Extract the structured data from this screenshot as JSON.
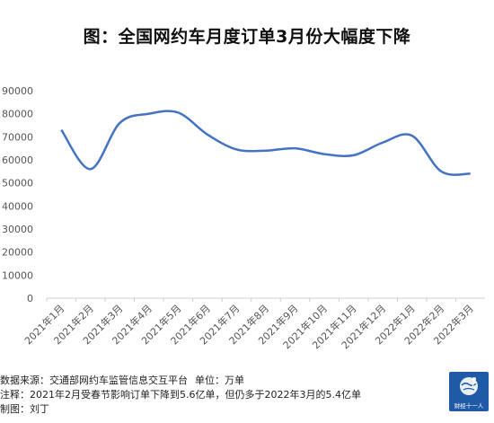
{
  "title": "图：全国网约车月度订单3月份大幅度下降",
  "footer": {
    "source_label": "数据来源：交通部网约车监管信息交互平台",
    "unit_label": "单位：万单",
    "note": "注释：2021年2月受春节影响订单下降到5.6亿单，但仍多于2022年3月的5.4亿单",
    "author": "制图：刘丁"
  },
  "logo": {
    "text": "财经十一人",
    "icon": "globe-figure-icon",
    "color": "#1f5aa6"
  },
  "chart_data": {
    "type": "line",
    "title": "图：全国网约车月度订单3月份大幅度下降",
    "xlabel": "",
    "ylabel": "",
    "categories": [
      "2021年1月",
      "2021年2月",
      "2021年3月",
      "2021年4月",
      "2021年5月",
      "2021年6月",
      "2021年7月",
      "2021年8月",
      "2021年9月",
      "2021年10月",
      "2021年11月",
      "2021年12月",
      "2022年1月",
      "2022年2月",
      "2022年3月"
    ],
    "series": [
      {
        "color": "#4472c4",
        "smooth": true,
        "values": [
          73000,
          56000,
          76000,
          80000,
          80500,
          71000,
          64500,
          64000,
          65000,
          62500,
          62000,
          67500,
          70500,
          55000,
          54000
        ]
      }
    ],
    "ylim": [
      0,
      90000
    ],
    "yticks": [
      0,
      10000,
      20000,
      30000,
      40000,
      50000,
      60000,
      70000,
      80000,
      90000
    ],
    "grid": false,
    "legend": "none"
  }
}
